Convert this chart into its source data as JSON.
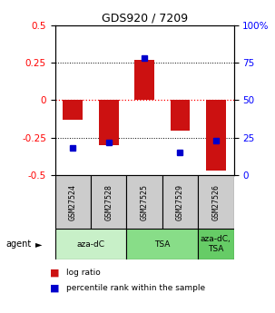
{
  "title": "GDS920 / 7209",
  "samples": [
    "GSM27524",
    "GSM27528",
    "GSM27525",
    "GSM27529",
    "GSM27526"
  ],
  "log_ratio": [
    -0.13,
    -0.3,
    0.27,
    -0.2,
    -0.47
  ],
  "percentile_rank_pct": [
    18,
    22,
    78,
    15,
    23
  ],
  "agent_groups": [
    {
      "label": "aza-dC",
      "start": 0,
      "end": 1,
      "color": "#c8f0c8"
    },
    {
      "label": "TSA",
      "start": 2,
      "end": 3,
      "color": "#88dd88"
    },
    {
      "label": "aza-dC,\nTSA",
      "start": 4,
      "end": 4,
      "color": "#66cc66"
    }
  ],
  "bar_color_red": "#cc1111",
  "bar_color_blue": "#0000cc",
  "ylim_left": [
    -0.5,
    0.5
  ],
  "ylim_right": [
    0,
    100
  ],
  "yticks_left": [
    -0.5,
    -0.25,
    0,
    0.25,
    0.5
  ],
  "yticks_right": [
    0,
    25,
    50,
    75,
    100
  ],
  "sample_cell_color": "#cccccc",
  "bar_width": 0.55
}
